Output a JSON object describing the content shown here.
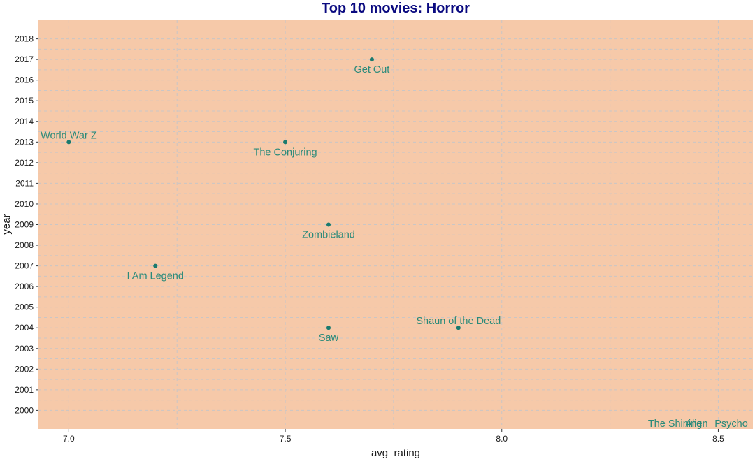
{
  "chart_data": {
    "type": "scatter",
    "title": "Top 10 movies: Horror",
    "xlabel": "avg_rating",
    "ylabel": "year",
    "xlim": [
      6.93,
      8.58
    ],
    "ylim": [
      1999.1,
      2018.9
    ],
    "x_ticks": [
      7.0,
      7.5,
      8.0,
      8.5
    ],
    "x_tick_labels": [
      "7.0",
      "7.5",
      "8.0",
      "8.5"
    ],
    "y_ticks": [
      2000,
      2001,
      2002,
      2003,
      2004,
      2005,
      2006,
      2007,
      2008,
      2009,
      2010,
      2011,
      2012,
      2013,
      2014,
      2015,
      2016,
      2017,
      2018
    ],
    "y_tick_labels": [
      "2000",
      "2001",
      "2002",
      "2003",
      "2004",
      "2005",
      "2006",
      "2007",
      "2008",
      "2009",
      "2010",
      "2011",
      "2012",
      "2013",
      "2014",
      "2015",
      "2016",
      "2017",
      "2018"
    ],
    "grid": true,
    "points": [
      {
        "label": "Get Out",
        "x": 7.7,
        "y": 2017,
        "label_position": "below"
      },
      {
        "label": "World War Z",
        "x": 7.0,
        "y": 2013,
        "label_position": "above"
      },
      {
        "label": "The Conjuring",
        "x": 7.5,
        "y": 2013,
        "label_position": "below"
      },
      {
        "label": "Zombieland",
        "x": 7.6,
        "y": 2009,
        "label_position": "below"
      },
      {
        "label": "I Am Legend",
        "x": 7.2,
        "y": 2007,
        "label_position": "below"
      },
      {
        "label": "Shaun of the Dead",
        "x": 7.9,
        "y": 2004,
        "label_position": "above"
      },
      {
        "label": "Saw",
        "x": 7.6,
        "y": 2004,
        "label_position": "below"
      }
    ],
    "off_chart_labels": [
      {
        "label": "The Shining",
        "x": 8.4
      },
      {
        "label": "Alien",
        "x": 8.45
      },
      {
        "label": "Psycho",
        "x": 8.53
      }
    ],
    "colors": {
      "panel_background": "#f6c9a9",
      "grid_line": "#c9c6c6",
      "point": "#1a7a6e",
      "label": "#2a8a7a",
      "title": "#0a0a80"
    }
  }
}
